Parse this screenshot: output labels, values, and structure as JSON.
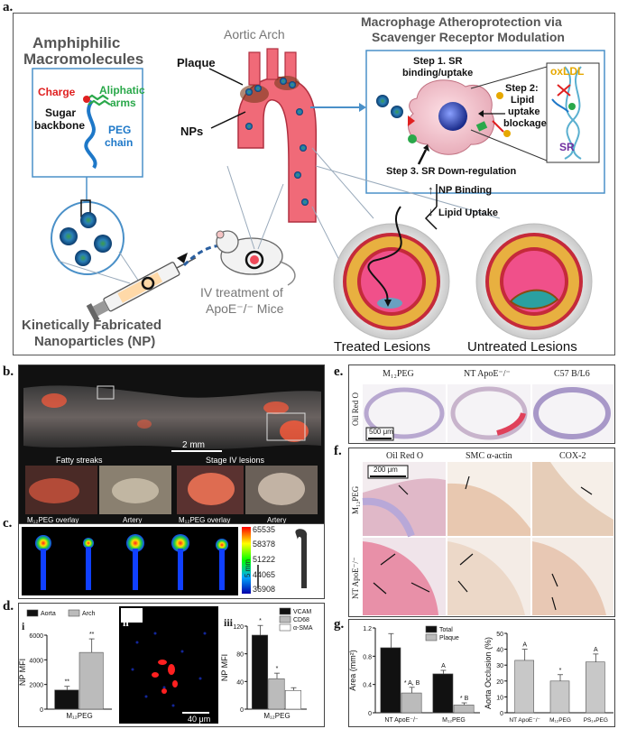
{
  "panel_a": {
    "letter": "a.",
    "amphiphilic_title_1": "Amphiphilic",
    "amphiphilic_title_2": "Macromolecules",
    "charge": "Charge",
    "aliphatic_1": "Aliphatic",
    "aliphatic_2": "arms",
    "sugar_1": "Sugar",
    "sugar_2": "backbone",
    "peg_1": "PEG",
    "peg_2": "chain",
    "kinetic_1": "Kinetically Fabricated",
    "kinetic_2": "Nanoparticles (NP)",
    "aortic_arch": "Aortic Arch",
    "plaque": "Plaque",
    "nps": "NPs",
    "iv_1": "IV treatment of",
    "iv_2": "ApoE⁻/⁻ Mice",
    "macro_title_1": "Macrophage Atheroprotection via",
    "macro_title_2": "Scavenger Receptor Modulation",
    "step1_1": "Step 1. SR",
    "step1_2": "binding/uptake",
    "step2_1": "Step 2:",
    "step2_2": "Lipid",
    "step2_3": "uptake",
    "step2_4": "blockage",
    "step3": "Step 3. SR Down-regulation",
    "oxldl": "oxLDL",
    "sr": "SR",
    "np_binding": "NP Binding",
    "lipid_uptake": "Lipid Uptake",
    "treated": "Treated Lesions",
    "untreated": "Untreated Lesions",
    "colors": {
      "charge": "#e02020",
      "aliphatic": "#2aa84a",
      "peg": "#1e78c8",
      "aorta": "#f06a78",
      "oxldl": "#e6a800",
      "sr": "#7030a0"
    }
  },
  "panel_b": {
    "letter": "b.",
    "scale": "2 mm",
    "fatty": "Fatty streaks",
    "stage4": "Stage IV lesions",
    "overlay_1": "M₁₂PEG overlay",
    "artery_1": "Artery",
    "overlay_2": "M₁₂PEG overlay",
    "artery_2": "Artery"
  },
  "panel_c": {
    "letter": "c.",
    "colorbar_ticks": [
      "65535",
      "58378",
      "51222",
      "44065",
      "36908"
    ],
    "scale": "5 mm"
  },
  "panel_d": {
    "letter": "d.",
    "sub_i": "i",
    "sub_ii": "ii",
    "sub_iii": "iii",
    "scale_ii": "40 μm"
  },
  "panel_e": {
    "letter": "e.",
    "col1": "M₁₂PEG",
    "col2": "NT ApoE⁻/⁻",
    "col3": "C57 B/L6",
    "row": "Oil Red O",
    "scale": "500 μm"
  },
  "panel_f": {
    "letter": "f.",
    "col1": "Oil Red O",
    "col2": "SMC α-actin",
    "col3": "COX-2",
    "row1": "M₁₂PEG",
    "row2": "NT ApoE⁻/⁻",
    "scale": "200 μm"
  },
  "panel_g": {
    "letter": "g."
  },
  "chart_data": [
    {
      "id": "d_i",
      "type": "bar",
      "categories": [
        "M₁₂PEG"
      ],
      "series": [
        {
          "name": "Aorta",
          "values": [
            1550
          ],
          "error": [
            300
          ],
          "sig": "**"
        },
        {
          "name": "Arch",
          "values": [
            4600
          ],
          "error": [
            1100
          ],
          "sig": "**"
        }
      ],
      "ylabel": "NP MFI",
      "ylim": [
        0,
        6000
      ],
      "yticks": [
        "0",
        "2000",
        "4000",
        "6000"
      ],
      "legend": "top"
    },
    {
      "id": "d_iii",
      "type": "bar",
      "categories": [
        "M₁₂PEG"
      ],
      "series": [
        {
          "name": "VCAM",
          "values": [
            107
          ],
          "error": [
            14
          ],
          "sig": "*"
        },
        {
          "name": "CD68",
          "values": [
            44
          ],
          "error": [
            8
          ],
          "sig": "*"
        },
        {
          "name": "α-SMA",
          "values": [
            27
          ],
          "error": [
            4
          ],
          "sig": ""
        }
      ],
      "ylabel": "NP MFI",
      "ylim": [
        0,
        120
      ],
      "yticks": [
        "0",
        "40",
        "80",
        "120"
      ],
      "legend": "top-right"
    },
    {
      "id": "g_area",
      "type": "bar",
      "categories": [
        "NT ApoE⁻/⁻",
        "M₁₂PEG"
      ],
      "series": [
        {
          "name": "Total",
          "values": [
            0.92,
            0.55
          ],
          "error": [
            0.2,
            0.05
          ],
          "sig": [
            "",
            "A"
          ]
        },
        {
          "name": "Plaque",
          "values": [
            0.28,
            0.11
          ],
          "error": [
            0.08,
            0.03
          ],
          "sig": [
            "* A, B",
            "* B"
          ]
        }
      ],
      "ylabel": "Area (mm²)",
      "ylim": [
        0,
        1.2
      ],
      "yticks": [
        "0",
        "0.4",
        "0.8",
        "1.2"
      ],
      "legend": "top-right"
    },
    {
      "id": "g_occlusion",
      "type": "bar",
      "categories": [
        "NT ApoE⁻/⁻",
        "M₁₂PEG",
        "PS₁₄PEG"
      ],
      "series": [
        {
          "name": "",
          "values": [
            33,
            20,
            32
          ],
          "error": [
            7,
            4,
            5
          ],
          "sig": [
            "A",
            "*",
            "A"
          ]
        }
      ],
      "ylabel": "Aorta Occlusion (%)",
      "ylim": [
        0,
        50
      ],
      "yticks": [
        "0",
        "10",
        "20",
        "30",
        "40",
        "50"
      ]
    }
  ]
}
